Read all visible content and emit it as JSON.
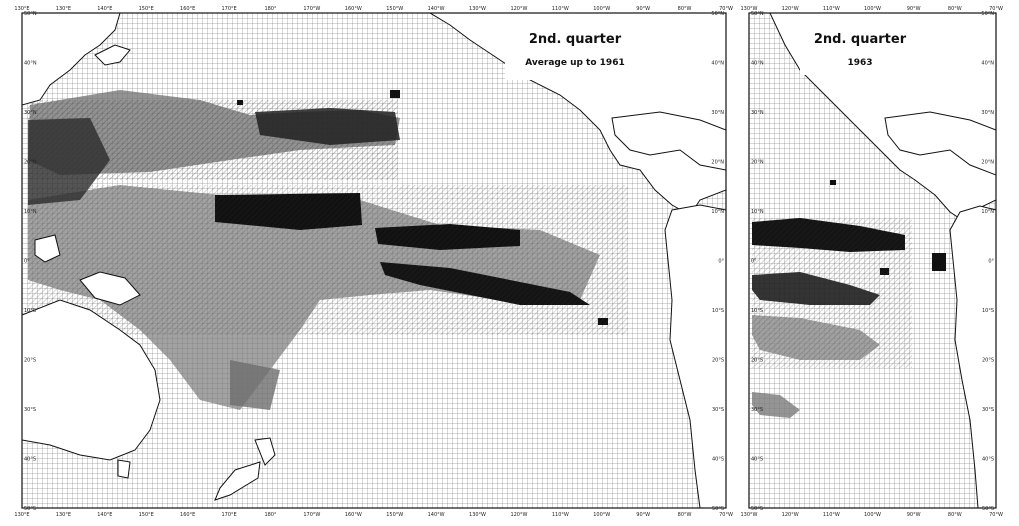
{
  "panels": [
    {
      "title": "2nd. quarter",
      "subtitle": "Average up to 1961",
      "top_ticks": [
        "130°E",
        "130°E",
        "140°E",
        "150°E",
        "160°E",
        "170°E",
        "180°",
        "170°W",
        "160°W",
        "150°W",
        "140°W",
        "130°W",
        "120°W",
        "110°W",
        "100°W",
        "90°W",
        "80°W",
        "70°W"
      ],
      "bottom_ticks": [
        "130°E",
        "130°E",
        "140°E",
        "150°E",
        "160°E",
        "170°E",
        "180°",
        "170°W",
        "160°W",
        "150°W",
        "140°W",
        "130°W",
        "120°W",
        "110°W",
        "100°W",
        "90°W",
        "80°W",
        "70°W"
      ],
      "left_ticks": [
        "50°N",
        "40°N",
        "30°N",
        "20°N",
        "10°N",
        "0°",
        "10°S",
        "20°S",
        "30°S",
        "40°S",
        "50°S"
      ],
      "right_ticks": [
        "50°N",
        "40°N",
        "30°N",
        "20°N",
        "10°N",
        "0°",
        "10°S",
        "20°S",
        "30°S",
        "40°S",
        "50°S"
      ]
    },
    {
      "title": "2nd. quarter",
      "subtitle": "1963",
      "top_ticks": [
        "130°W",
        "120°W",
        "110°W",
        "100°W",
        "90°W",
        "80°W",
        "70°W"
      ],
      "bottom_ticks": [
        "130°W",
        "120°W",
        "110°W",
        "100°W",
        "90°W",
        "80°W",
        "70°W"
      ],
      "left_ticks": [
        "50°N",
        "40°N",
        "30°N",
        "20°N",
        "10°N",
        "0°",
        "10°S",
        "20°S",
        "30°S",
        "40°S",
        "50°S"
      ],
      "right_ticks": [
        "50°N",
        "40°N",
        "30°N",
        "20°N",
        "10°N",
        "0°",
        "10°S",
        "20°S",
        "30°S",
        "40°S",
        "50°S"
      ]
    }
  ],
  "colors": {
    "grid": "#555555",
    "ink": "#111111",
    "dense": "#1a1a1a",
    "medium": "#5a5a5a",
    "light": "#8c8c8c"
  }
}
